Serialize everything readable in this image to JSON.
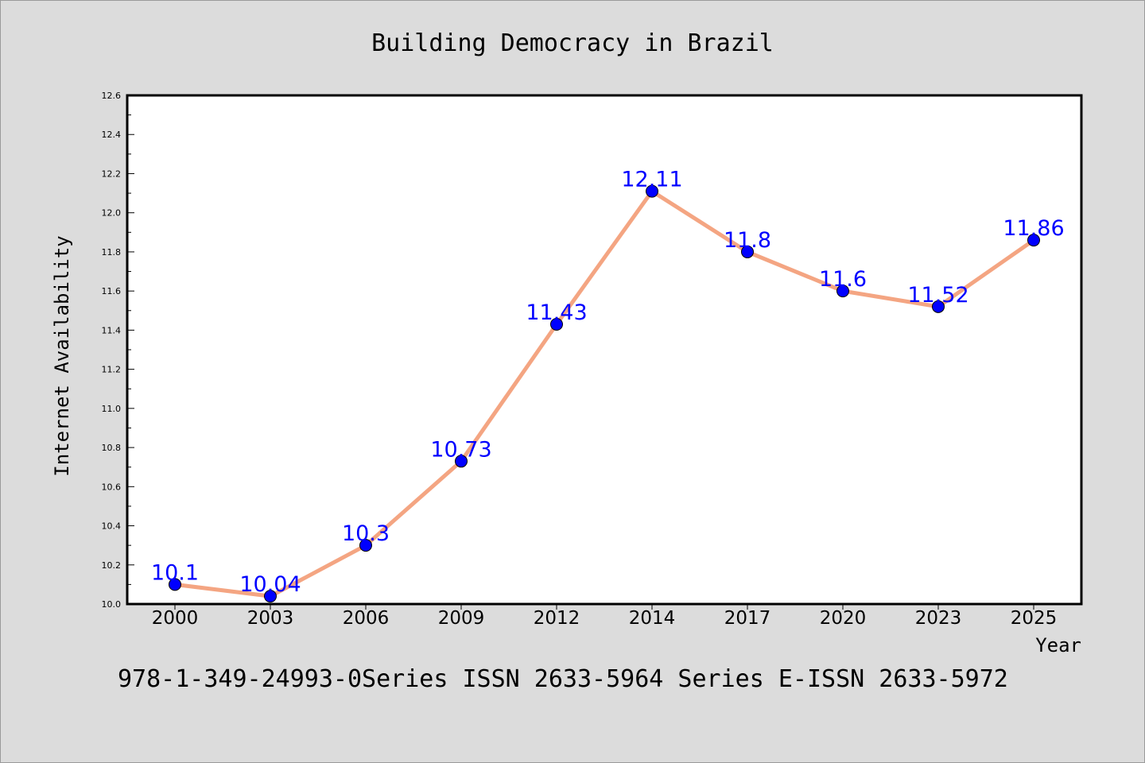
{
  "chart_data": {
    "type": "line",
    "title": "Building Democracy in Brazil",
    "xlabel": "Year",
    "ylabel": "Internet Availability",
    "categories": [
      "2000",
      "2003",
      "2006",
      "2009",
      "2012",
      "2014",
      "2017",
      "2020",
      "2023",
      "2025"
    ],
    "values": [
      10.1,
      10.04,
      10.3,
      10.73,
      11.43,
      12.11,
      11.8,
      11.6,
      11.52,
      11.86
    ],
    "data_labels": [
      "10.1",
      "10.04",
      "10.3",
      "10.73",
      "11.43",
      "12.11",
      "11.8",
      "11.6",
      "11.52",
      "11.86"
    ],
    "ylim": [
      10.0,
      12.6
    ],
    "yticks": [
      "10.0",
      "10.2",
      "10.4",
      "10.6",
      "10.8",
      "11.0",
      "11.2",
      "11.4",
      "11.6",
      "11.8",
      "12.0",
      "12.2",
      "12.4",
      "12.6"
    ],
    "grid": false,
    "line_color": "#f4a582",
    "marker_color": "#0000ff",
    "label_color": "#0000ff",
    "background": "#dcdcdc"
  },
  "footer_text": "978-1-349-24993-0Series ISSN 2633-5964 Series E-ISSN 2633-5972"
}
